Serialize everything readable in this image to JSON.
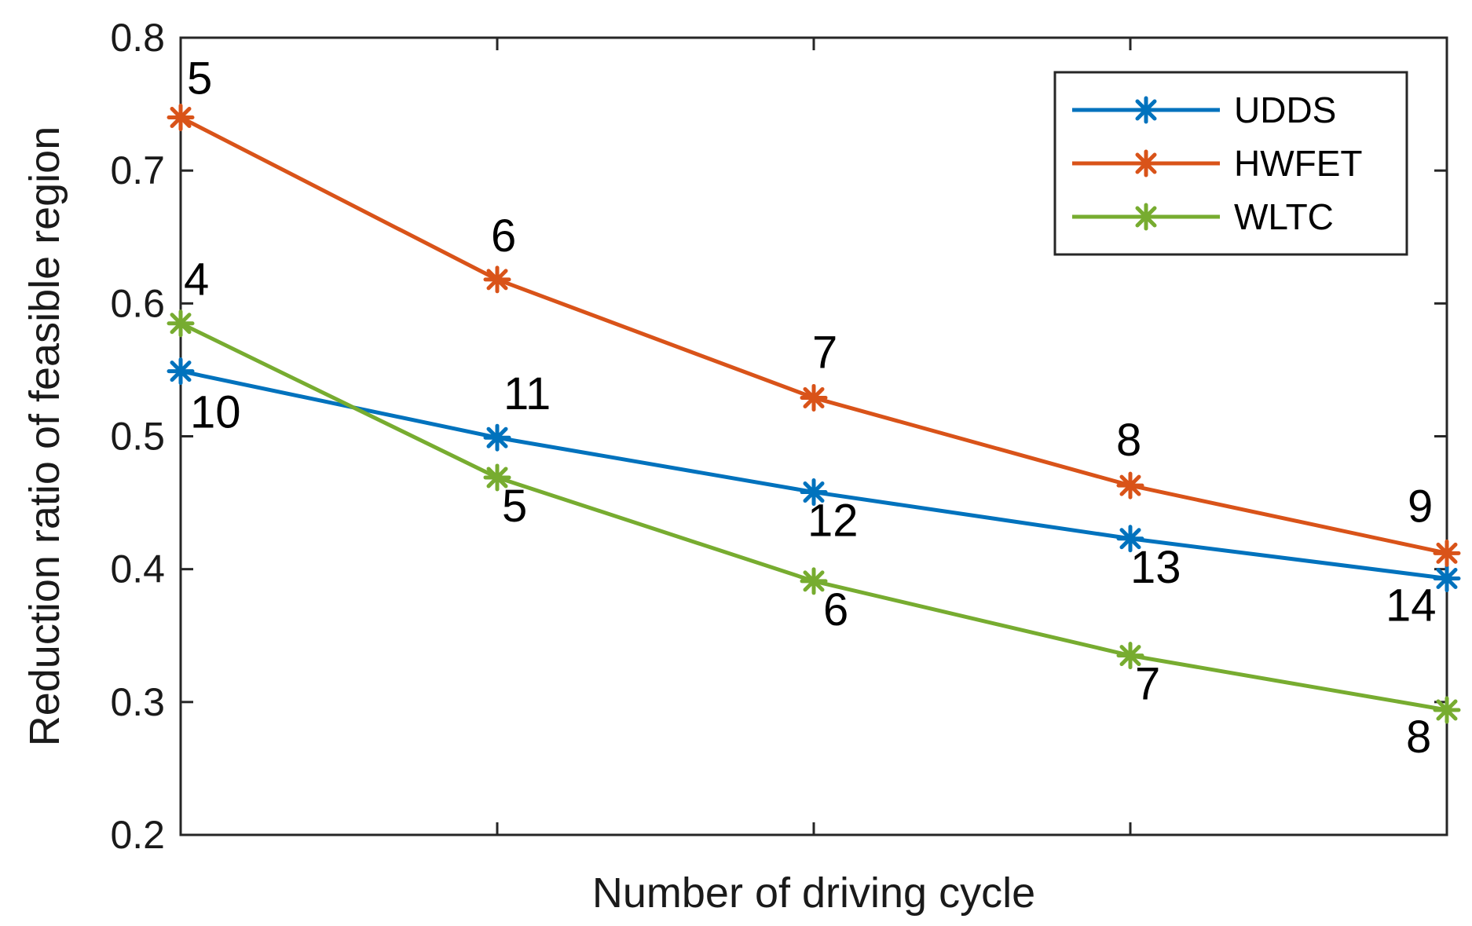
{
  "chart_data": {
    "type": "line",
    "title": "",
    "xlabel": "Number of driving cycle",
    "ylabel": "Reduction ratio of feasible region",
    "x": [
      1,
      2,
      3,
      4,
      5
    ],
    "xlim": [
      1,
      5
    ],
    "ylim": [
      0.2,
      0.8
    ],
    "yticks": [
      0.2,
      0.3,
      0.4,
      0.5,
      0.6,
      0.7,
      0.8
    ],
    "ytick_labels": [
      "0.2",
      "0.3",
      "0.4",
      "0.5",
      "0.6",
      "0.7",
      "0.8"
    ],
    "grid": false,
    "legend_position": "top-right",
    "series": [
      {
        "name": "UDDS",
        "color": "#0072BD",
        "values": [
          0.549,
          0.499,
          0.458,
          0.423,
          0.393
        ],
        "point_labels": [
          "10",
          "11",
          "12",
          "13",
          "14"
        ]
      },
      {
        "name": "HWFET",
        "color": "#D95319",
        "values": [
          0.74,
          0.618,
          0.529,
          0.463,
          0.412
        ],
        "point_labels": [
          "5",
          "6",
          "7",
          "8",
          "9"
        ]
      },
      {
        "name": "WLTC",
        "color": "#77AC30",
        "values": [
          0.585,
          0.469,
          0.391,
          0.335,
          0.294
        ],
        "point_labels": [
          "4",
          "5",
          "6",
          "7",
          "8"
        ]
      }
    ]
  }
}
